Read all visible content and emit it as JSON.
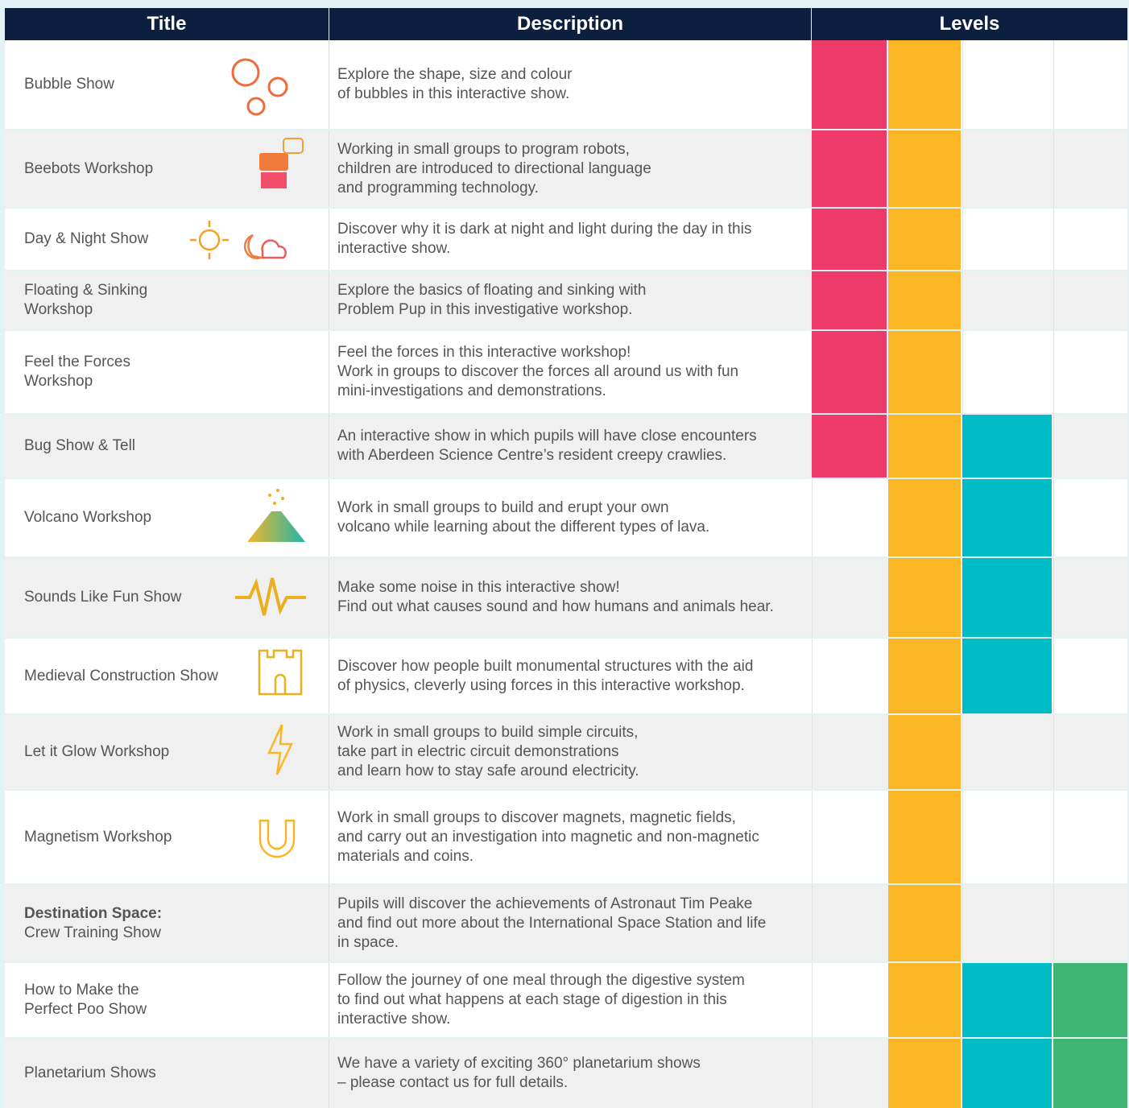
{
  "header": {
    "columns": [
      "Title",
      "Description",
      "Levels"
    ]
  },
  "level_colors": [
    "#ee3a6b",
    "#fbb626",
    "#00bcc6",
    "#3fb574"
  ],
  "rows": [
    {
      "title": [
        "Bubble Show"
      ],
      "description": [
        "Explore the shape, size and colour",
        "of bubbles in this interactive show."
      ],
      "levels": [
        true,
        true,
        false,
        false
      ]
    },
    {
      "title": [
        "Beebots Workshop"
      ],
      "description": [
        "Working in small groups to program robots,",
        "children are introduced to directional language",
        "and programming technology."
      ],
      "levels": [
        true,
        true,
        false,
        false
      ]
    },
    {
      "title": [
        "Day & Night Show"
      ],
      "description": [
        "Discover why it is dark at night and light during the day in this",
        "interactive show."
      ],
      "levels": [
        true,
        true,
        false,
        false
      ]
    },
    {
      "title": [
        "Floating & Sinking",
        "Workshop"
      ],
      "description": [
        "Explore the basics of floating and sinking with",
        "Problem Pup in this investigative workshop."
      ],
      "levels": [
        true,
        true,
        false,
        false
      ]
    },
    {
      "title": [
        "Feel the Forces",
        "Workshop"
      ],
      "description": [
        "Feel the forces in this interactive workshop!",
        "Work in groups to discover the forces all around us with fun",
        "mini-investigations and demonstrations."
      ],
      "levels": [
        true,
        true,
        false,
        false
      ]
    },
    {
      "title": [
        "Bug Show & Tell"
      ],
      "description": [
        "An interactive show in which pupils will have close encounters",
        "with Aberdeen Science Centre’s resident creepy crawlies."
      ],
      "levels": [
        true,
        true,
        true,
        false
      ]
    },
    {
      "title": [
        "Volcano Workshop"
      ],
      "description": [
        "Work in small groups to build and erupt your own",
        "volcano while learning about the different types of lava."
      ],
      "levels": [
        false,
        true,
        true,
        false
      ]
    },
    {
      "title": [
        "Sounds Like Fun Show"
      ],
      "description": [
        "Make some noise in this interactive show!",
        "Find out what causes sound and how humans and animals hear."
      ],
      "levels": [
        false,
        true,
        true,
        false
      ]
    },
    {
      "title": [
        "Medieval Construction Show"
      ],
      "description": [
        "Discover how people built monumental structures with the aid",
        "of physics, cleverly using forces in this interactive workshop."
      ],
      "levels": [
        false,
        true,
        true,
        false
      ]
    },
    {
      "title": [
        "Let it Glow Workshop"
      ],
      "description": [
        "Work in small groups to build simple circuits,",
        "take part in electric circuit demonstrations",
        "and learn how to stay safe around electricity."
      ],
      "levels": [
        false,
        true,
        false,
        false
      ]
    },
    {
      "title": [
        "Magnetism Workshop"
      ],
      "description": [
        "Work in small groups to discover magnets, magnetic fields,",
        "and carry out an investigation into magnetic and non-magnetic",
        "materials and coins."
      ],
      "levels": [
        false,
        true,
        false,
        false
      ]
    },
    {
      "title": [
        "Destination Space:",
        "Crew Training Show"
      ],
      "bold_first_line": true,
      "description": [
        "Pupils will discover the achievements of Astronaut Tim Peake",
        "and find out more about the International Space Station and life",
        "in space."
      ],
      "levels": [
        false,
        true,
        false,
        false
      ]
    },
    {
      "title": [
        "How to Make the",
        "Perfect Poo Show"
      ],
      "description": [
        "Follow the journey of one meal through the digestive system",
        "to find out what happens at each stage of digestion in this",
        "interactive show."
      ],
      "levels": [
        false,
        true,
        true,
        true
      ]
    },
    {
      "title": [
        "Planetarium Shows"
      ],
      "description": [
        "We have a variety of exciting 360° planetarium shows",
        "– please contact us for full details."
      ],
      "levels": [
        false,
        true,
        true,
        true
      ]
    }
  ]
}
